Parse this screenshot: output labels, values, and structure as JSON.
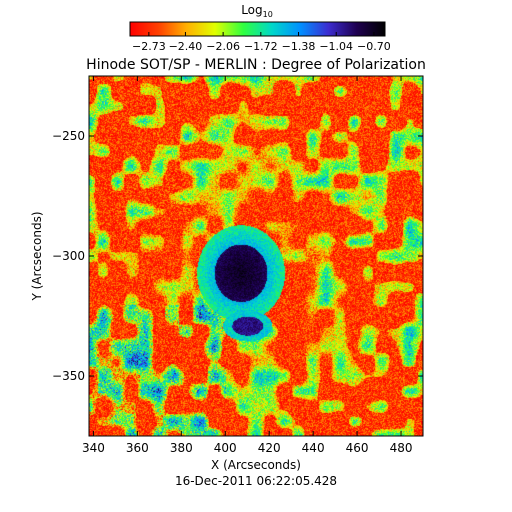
{
  "chart_data": {
    "type": "heatmap",
    "title": "Hinode SOT/SP - MERLIN : Degree of Polarization",
    "xlabel": "X (Arcseconds)",
    "ylabel": "Y (Arcseconds)",
    "timestamp": "16-Dec-2011 06:22:05.428",
    "xlim": [
      338,
      490
    ],
    "ylim": [
      -375,
      -225
    ],
    "xticks": [
      340,
      360,
      380,
      400,
      420,
      440,
      460,
      480
    ],
    "yticks": [
      -250,
      -300,
      -350
    ],
    "colorbar": {
      "label_base": "Log",
      "label_subscript": "10",
      "range": [
        -2.9,
        -0.6
      ],
      "tick_labels": [
        "−2.73",
        "−2.40",
        "−2.06",
        "−1.72",
        "−1.38",
        "−1.04",
        "−0.70"
      ],
      "tick_values": [
        -2.73,
        -2.4,
        -2.06,
        -1.72,
        -1.38,
        -1.04,
        -0.7
      ],
      "colormap": [
        "#000000",
        "#1e0050",
        "#3c2cd0",
        "#0090ff",
        "#00d8c8",
        "#30ff40",
        "#e0ff00",
        "#ffb000",
        "#ff4000",
        "#ff0000"
      ]
    },
    "features": {
      "umbra_center": [
        407,
        -307
      ],
      "umbra_radius": 12,
      "penumbra_radius": 20,
      "pore_center": [
        410,
        -329
      ],
      "background_log_value": -2.7
    }
  }
}
